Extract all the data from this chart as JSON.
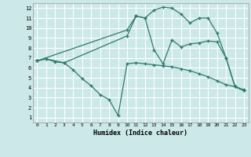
{
  "xlabel": "Humidex (Indice chaleur)",
  "bg_color": "#cce8e8",
  "grid_color": "#ffffff",
  "line_color": "#2d7a6e",
  "marker": "+",
  "xlim": [
    -0.5,
    23.5
  ],
  "ylim": [
    0.5,
    12.5
  ],
  "xticks": [
    0,
    1,
    2,
    3,
    4,
    5,
    6,
    7,
    8,
    9,
    10,
    11,
    12,
    13,
    14,
    15,
    16,
    17,
    18,
    19,
    20,
    21,
    22,
    23
  ],
  "yticks": [
    1,
    2,
    3,
    4,
    5,
    6,
    7,
    8,
    9,
    10,
    11,
    12
  ],
  "line1_x": [
    0,
    1,
    2,
    3,
    4,
    5,
    6,
    7,
    8,
    9,
    10,
    11,
    12,
    13,
    14,
    15,
    16,
    17,
    18,
    19,
    20,
    21,
    22,
    23
  ],
  "line1_y": [
    6.7,
    6.9,
    6.6,
    6.5,
    5.8,
    4.9,
    4.2,
    3.3,
    2.8,
    1.2,
    6.4,
    6.5,
    6.4,
    6.3,
    6.2,
    6.1,
    5.9,
    5.7,
    5.4,
    5.1,
    4.7,
    4.3,
    4.1,
    3.7
  ],
  "line2_x": [
    0,
    1,
    3,
    10,
    11,
    12,
    13,
    14,
    15,
    16,
    17,
    18,
    19,
    20,
    21,
    22,
    23
  ],
  "line2_y": [
    6.7,
    6.9,
    6.5,
    9.2,
    11.2,
    11.0,
    7.8,
    6.4,
    8.8,
    8.1,
    8.4,
    8.5,
    8.7,
    8.6,
    7.0,
    4.1,
    3.8
  ],
  "line3_x": [
    0,
    10,
    11,
    12,
    13,
    14,
    15,
    16,
    17,
    18,
    19,
    20,
    21,
    22,
    23
  ],
  "line3_y": [
    6.7,
    9.8,
    11.2,
    11.0,
    11.8,
    12.1,
    12.0,
    11.4,
    10.5,
    11.0,
    11.0,
    9.5,
    7.0,
    4.1,
    3.7
  ]
}
